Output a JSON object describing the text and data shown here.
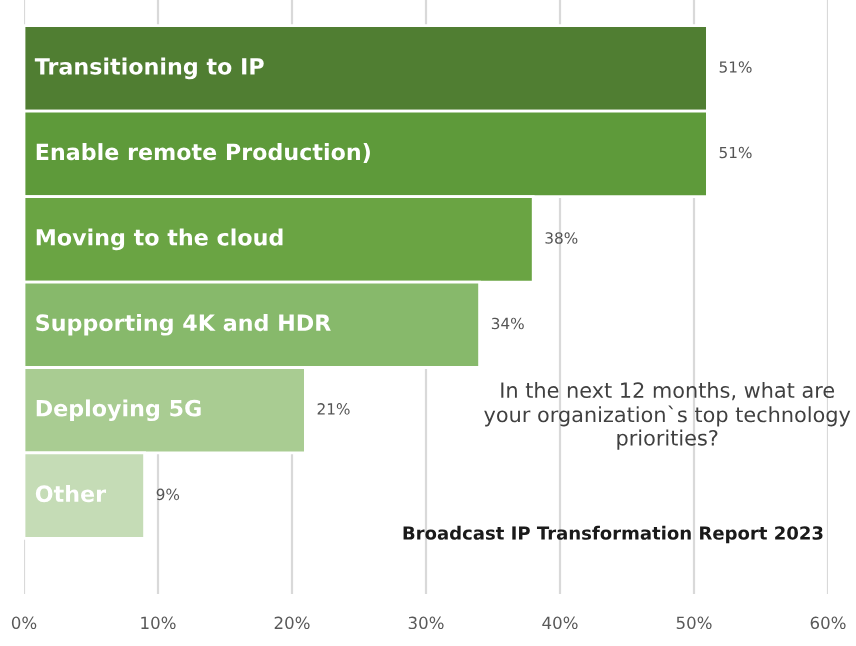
{
  "chart_data": {
    "type": "bar",
    "orientation": "horizontal",
    "categories": [
      "Transitioning to IP",
      "Enable remote Production)",
      "Moving to the cloud",
      "Supporting 4K and HDR",
      "Deploying 5G",
      "Other"
    ],
    "values": [
      51,
      51,
      38,
      34,
      21,
      9
    ],
    "colors": [
      "#507e32",
      "#5e9a3a",
      "#6aa443",
      "#87b96b",
      "#a9cc92",
      "#c5dcb6"
    ],
    "value_labels": [
      "51%",
      "51%",
      "38%",
      "34%",
      "21%",
      "9%"
    ],
    "xlim": [
      0,
      60
    ],
    "xticks": [
      {
        "value": 0,
        "label": "0%"
      },
      {
        "value": 10,
        "label": "10%"
      },
      {
        "value": 20,
        "label": "20%"
      },
      {
        "value": 30,
        "label": "30%"
      },
      {
        "value": 40,
        "label": "40%"
      },
      {
        "value": 50,
        "label": "50%"
      },
      {
        "value": 60,
        "label": "60%"
      }
    ],
    "grid": "x",
    "annotations": [
      "In the next 12 months, what are your organization`s top technology priorities?",
      "Broadcast IP Transformation Report 2023"
    ]
  }
}
